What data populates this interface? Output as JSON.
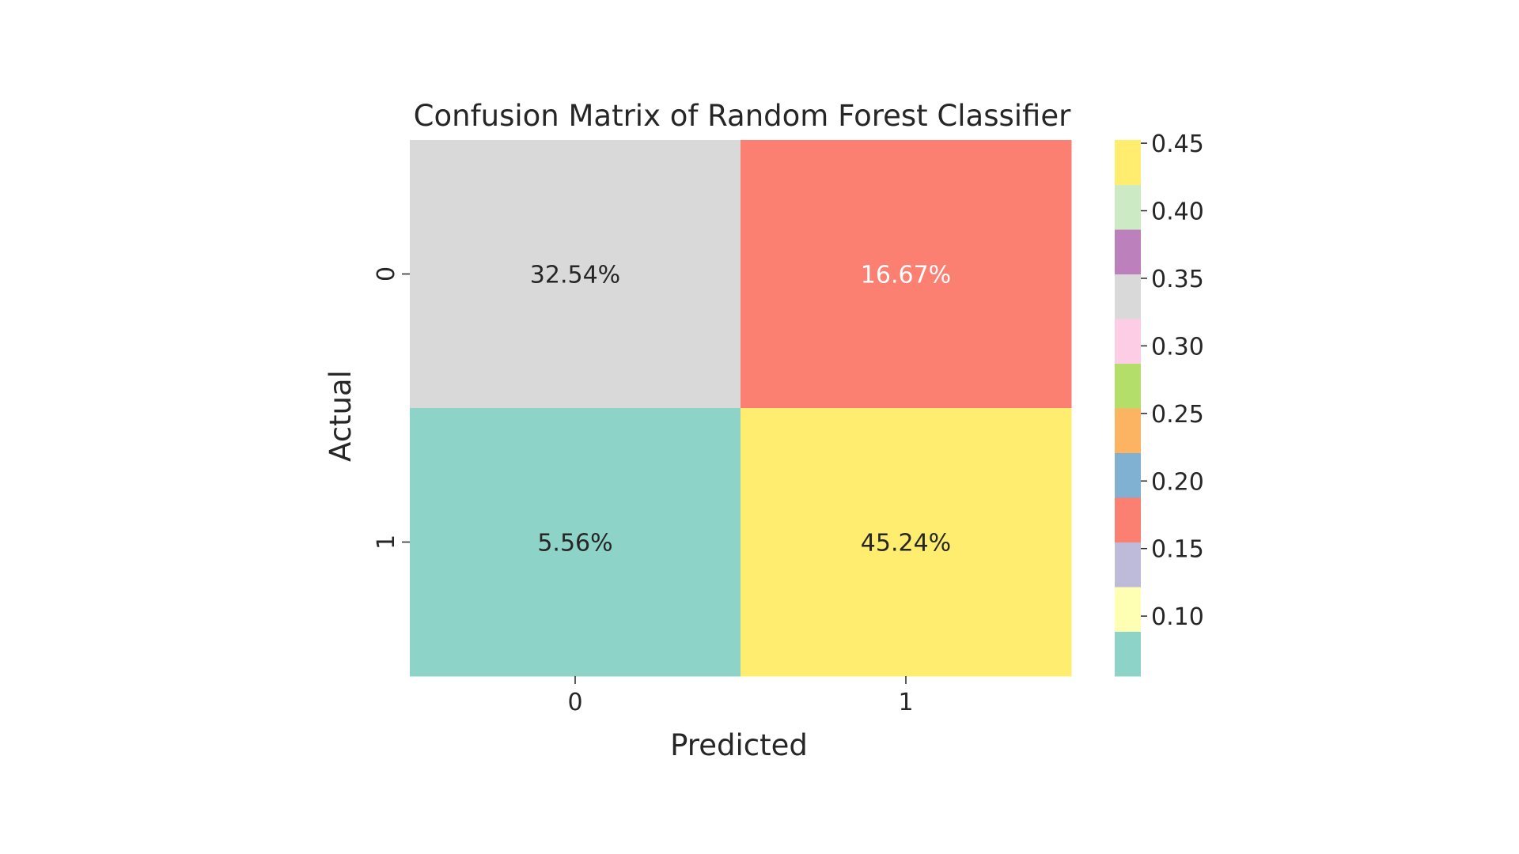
{
  "chart_data": {
    "type": "heatmap",
    "title": "Confusion Matrix of Random Forest Classifier",
    "xlabel": "Predicted",
    "ylabel": "Actual",
    "x_categories": [
      "0",
      "1"
    ],
    "y_categories": [
      "0",
      "1"
    ],
    "values": [
      [
        0.3254,
        0.1667
      ],
      [
        0.0556,
        0.4524
      ]
    ],
    "annotations": [
      [
        "32.54%",
        "16.67%"
      ],
      [
        "5.56%",
        "45.24%"
      ]
    ],
    "annotation_colors": [
      [
        "#262626",
        "#ffffff"
      ],
      [
        "#262626",
        "#262626"
      ]
    ],
    "colormap": "Set3",
    "colorbar": {
      "range": [
        0.0556,
        0.4524
      ],
      "ticks": [
        0.1,
        0.15,
        0.2,
        0.25,
        0.3,
        0.35,
        0.4,
        0.45
      ],
      "tick_labels": [
        "0.10",
        "0.15",
        "0.20",
        "0.25",
        "0.30",
        "0.35",
        "0.40",
        "0.45"
      ],
      "colors": [
        "#8dd3c7",
        "#ffffb3",
        "#bebada",
        "#fb8072",
        "#80b1d3",
        "#fdb462",
        "#b3de69",
        "#fccde5",
        "#d9d9d9",
        "#bc80bd",
        "#ccebc5",
        "#ffed6f"
      ]
    },
    "grid": false
  }
}
